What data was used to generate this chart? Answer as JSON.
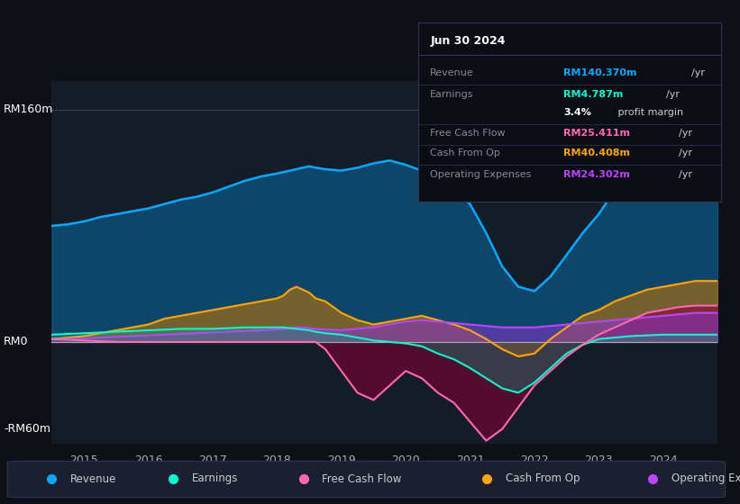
{
  "bg_color": "#0d1117",
  "plot_bg_color": "#131c27",
  "ylabel_top": "RM160m",
  "ylabel_zero": "RM0",
  "ylabel_bottom": "-RM60m",
  "ylim": [
    -70,
    180
  ],
  "xlim": [
    2014.5,
    2024.85
  ],
  "xticks": [
    2015,
    2016,
    2017,
    2018,
    2019,
    2020,
    2021,
    2022,
    2023,
    2024
  ],
  "info_box": {
    "date": "Jun 30 2024",
    "rows": [
      {
        "label": "Revenue",
        "value": "RM140.370m",
        "unit": "/yr",
        "color": "#00aaff"
      },
      {
        "label": "Earnings",
        "value": "RM4.787m",
        "unit": "/yr",
        "color": "#00ffcc"
      },
      {
        "label": "",
        "value": "3.4%",
        "unit": " profit margin",
        "color": "#ffffff"
      },
      {
        "label": "Free Cash Flow",
        "value": "RM25.411m",
        "unit": "/yr",
        "color": "#ff69b4"
      },
      {
        "label": "Cash From Op",
        "value": "RM40.408m",
        "unit": "/yr",
        "color": "#ffa500"
      },
      {
        "label": "Operating Expenses",
        "value": "RM24.302m",
        "unit": "/yr",
        "color": "#bb44ff"
      }
    ]
  },
  "legend": [
    {
      "label": "Revenue",
      "color": "#00aaff"
    },
    {
      "label": "Earnings",
      "color": "#00ffcc"
    },
    {
      "label": "Free Cash Flow",
      "color": "#ff69b4"
    },
    {
      "label": "Cash From Op",
      "color": "#ffa500"
    },
    {
      "label": "Operating Expenses",
      "color": "#bb44ff"
    }
  ],
  "series": {
    "x": [
      2014.5,
      2014.75,
      2015.0,
      2015.25,
      2015.5,
      2015.75,
      2016.0,
      2016.25,
      2016.5,
      2016.75,
      2017.0,
      2017.25,
      2017.5,
      2017.75,
      2018.0,
      2018.1,
      2018.2,
      2018.3,
      2018.4,
      2018.5,
      2018.6,
      2018.75,
      2019.0,
      2019.25,
      2019.5,
      2019.75,
      2020.0,
      2020.25,
      2020.5,
      2020.75,
      2021.0,
      2021.25,
      2021.5,
      2021.75,
      2022.0,
      2022.25,
      2022.5,
      2022.75,
      2023.0,
      2023.25,
      2023.5,
      2023.75,
      2024.0,
      2024.25,
      2024.5,
      2024.75,
      2024.85
    ],
    "revenue": [
      80,
      81,
      83,
      86,
      88,
      90,
      92,
      95,
      98,
      100,
      103,
      107,
      111,
      114,
      116,
      117,
      118,
      119,
      120,
      121,
      120,
      119,
      118,
      120,
      123,
      125,
      122,
      118,
      112,
      105,
      95,
      75,
      52,
      38,
      35,
      45,
      60,
      75,
      88,
      105,
      118,
      130,
      138,
      145,
      150,
      155,
      157
    ],
    "earnings": [
      5,
      5.5,
      6,
      6.5,
      7,
      7.5,
      8,
      8.5,
      9,
      9,
      9,
      9.5,
      10,
      10,
      10,
      10,
      9.5,
      9,
      8.5,
      8,
      7,
      6,
      5,
      3,
      1,
      0,
      -1,
      -3,
      -8,
      -12,
      -18,
      -25,
      -32,
      -35,
      -28,
      -18,
      -8,
      -2,
      2,
      3,
      4,
      4.5,
      5,
      5,
      5,
      5,
      5
    ],
    "fcf": [
      2,
      1.5,
      1,
      0.5,
      0,
      0,
      0,
      0,
      0,
      0,
      0,
      0,
      0,
      0,
      0,
      0,
      0,
      0,
      0,
      0,
      0,
      -5,
      -20,
      -35,
      -40,
      -30,
      -20,
      -25,
      -35,
      -42,
      -55,
      -68,
      -60,
      -45,
      -30,
      -20,
      -10,
      -2,
      5,
      10,
      15,
      20,
      22,
      24,
      25,
      25,
      25
    ],
    "cashfromop": [
      2,
      3,
      4,
      6,
      8,
      10,
      12,
      16,
      18,
      20,
      22,
      24,
      26,
      28,
      30,
      32,
      36,
      38,
      36,
      34,
      30,
      28,
      20,
      15,
      12,
      14,
      16,
      18,
      15,
      12,
      8,
      2,
      -5,
      -10,
      -8,
      2,
      10,
      18,
      22,
      28,
      32,
      36,
      38,
      40,
      42,
      42,
      42
    ],
    "opex": [
      2,
      2,
      2.5,
      3,
      3.5,
      4,
      4.5,
      5,
      5.5,
      6,
      6.5,
      7,
      7.5,
      8,
      8.5,
      9,
      9.5,
      10,
      10,
      9.5,
      9,
      8.5,
      8,
      9,
      10,
      12,
      14,
      15,
      14,
      13,
      12,
      11,
      10,
      10,
      10,
      11,
      12,
      13,
      14,
      15,
      16,
      17,
      18,
      19,
      20,
      20,
      20
    ]
  }
}
